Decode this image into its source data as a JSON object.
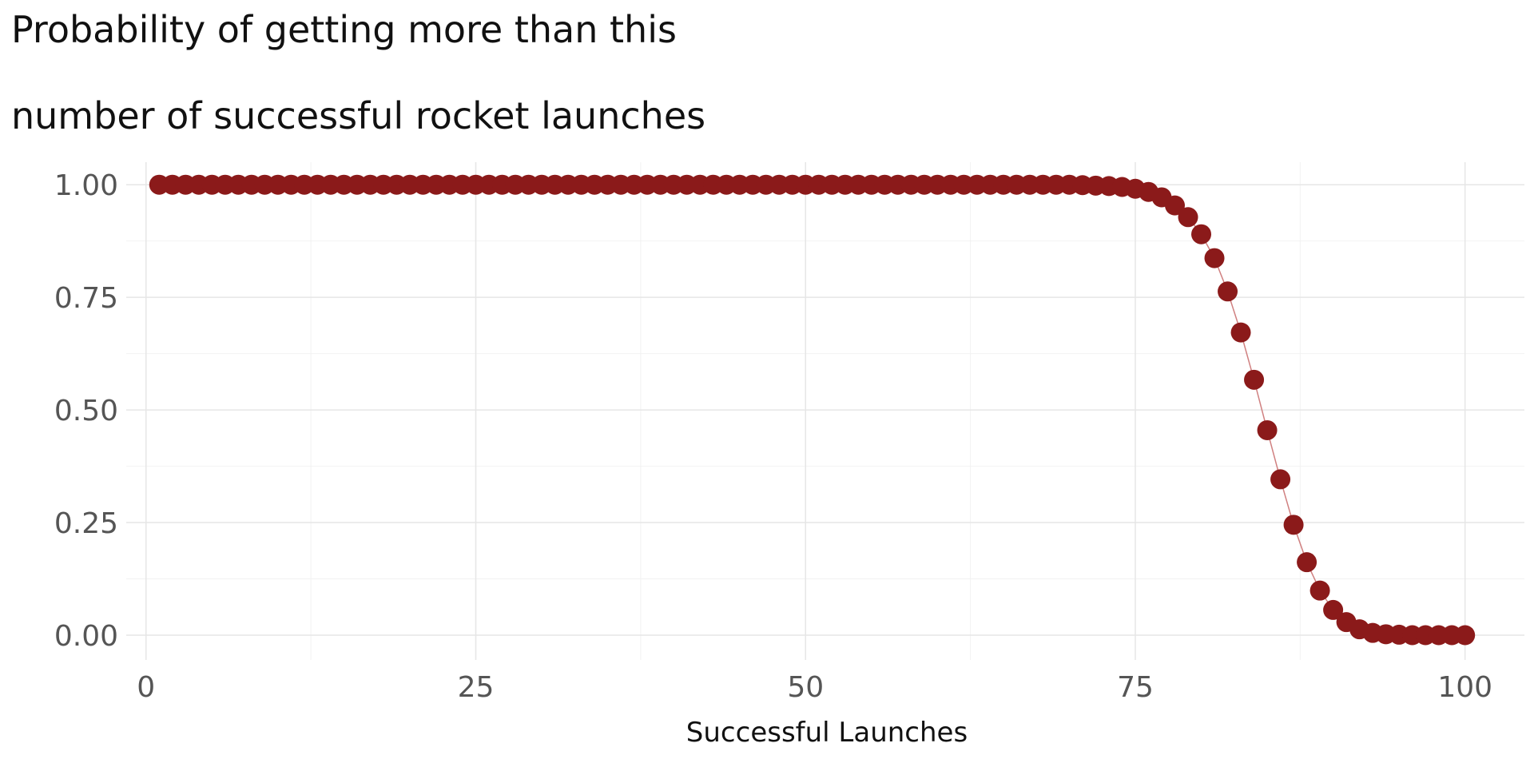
{
  "chart_data": {
    "type": "scatter",
    "title_lines": [
      "Probability of getting more than this",
      "number of successful rocket launches"
    ],
    "xlabel": "Successful Launches",
    "ylabel": "",
    "xlim": [
      -1.5,
      104.5
    ],
    "ylim": [
      -0.055,
      1.05
    ],
    "x_ticks": [
      0,
      25,
      50,
      75,
      100
    ],
    "x_tick_labels": [
      "0",
      "25",
      "50",
      "75",
      "100"
    ],
    "y_ticks": [
      0,
      0.25,
      0.5,
      0.75,
      1
    ],
    "y_tick_labels": [
      "0.00",
      "0.25",
      "0.50",
      "0.75",
      "1.00"
    ],
    "grid": true,
    "legend": "none",
    "point_color": "#8b1a1a",
    "line_color": "#d08080",
    "x": [
      1,
      2,
      3,
      4,
      5,
      6,
      7,
      8,
      9,
      10,
      11,
      12,
      13,
      14,
      15,
      16,
      17,
      18,
      19,
      20,
      21,
      22,
      23,
      24,
      25,
      26,
      27,
      28,
      29,
      30,
      31,
      32,
      33,
      34,
      35,
      36,
      37,
      38,
      39,
      40,
      41,
      42,
      43,
      44,
      45,
      46,
      47,
      48,
      49,
      50,
      51,
      52,
      53,
      54,
      55,
      56,
      57,
      58,
      59,
      60,
      61,
      62,
      63,
      64,
      65,
      66,
      67,
      68,
      69,
      70,
      71,
      72,
      73,
      74,
      75,
      76,
      77,
      78,
      79,
      80,
      81,
      82,
      83,
      84,
      85,
      86,
      87,
      88,
      89,
      90,
      91,
      92,
      93,
      94,
      95,
      96,
      97,
      98,
      99,
      100
    ],
    "values": [
      1,
      1,
      1,
      1,
      1,
      1,
      1,
      1,
      1,
      1,
      1,
      1,
      1,
      1,
      1,
      1,
      1,
      1,
      1,
      1,
      1,
      1,
      1,
      1,
      1,
      1,
      1,
      1,
      1,
      1,
      1,
      1,
      1,
      1,
      1,
      1,
      1,
      1,
      1,
      1,
      1,
      1,
      1,
      1,
      1,
      1,
      1,
      1,
      1,
      1,
      1,
      1,
      1,
      1,
      1,
      1,
      1,
      1,
      1,
      1,
      1,
      1,
      1,
      1,
      1,
      1,
      1,
      1,
      1,
      1,
      0.999,
      0.998,
      0.997,
      0.995,
      0.991,
      0.984,
      0.972,
      0.954,
      0.928,
      0.89,
      0.837,
      0.763,
      0.672,
      0.567,
      0.455,
      0.346,
      0.245,
      0.162,
      0.099,
      0.056,
      0.029,
      0.013,
      0.005,
      0.002,
      0.001,
      0,
      0,
      0,
      0,
      0
    ]
  }
}
